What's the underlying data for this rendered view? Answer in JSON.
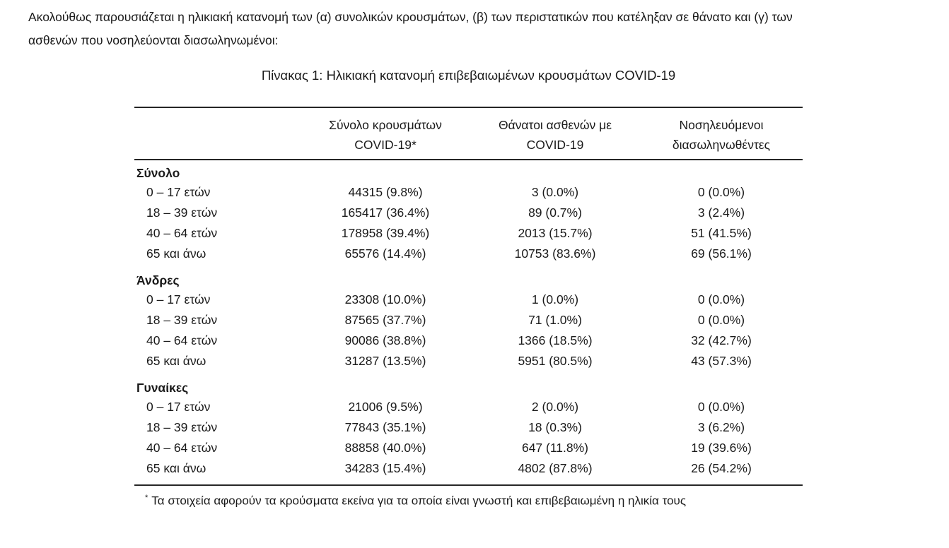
{
  "page": {
    "intro_line1": "Ακολούθως παρουσιάζεται η ηλικιακή κατανομή των (α) συνολικών κρουσμάτων, (β) των περιστατικών που κατέληξαν σε θάνατο και (γ) των",
    "intro_line2": "ασθενών που νοσηλεύονται διασωληνωμένοι:"
  },
  "table": {
    "title": "Πίνακας 1: Ηλικιακή κατανομή επιβεβαιωμένων κρουσμάτων COVID-19",
    "headers": [
      {
        "line1": "Σύνολο κρουσμάτων",
        "line2": "COVID-19*"
      },
      {
        "line1": "Θάνατοι ασθενών με",
        "line2": "COVID-19"
      },
      {
        "line1": "Νοσηλευόμενοι",
        "line2": "διασωληνωθέντες"
      }
    ],
    "sections": [
      {
        "label": "Σύνολο",
        "rows": [
          {
            "label": "0 – 17 ετών",
            "cells": [
              "44315 (9.8%)",
              "3 (0.0%)",
              "0 (0.0%)"
            ]
          },
          {
            "label": "18 – 39 ετών",
            "cells": [
              "165417 (36.4%)",
              "89 (0.7%)",
              "3 (2.4%)"
            ]
          },
          {
            "label": "40 – 64 ετών",
            "cells": [
              "178958 (39.4%)",
              "2013 (15.7%)",
              "51 (41.5%)"
            ]
          },
          {
            "label": "65 και άνω",
            "cells": [
              "65576 (14.4%)",
              "10753 (83.6%)",
              "69 (56.1%)"
            ]
          }
        ]
      },
      {
        "label": "Άνδρες",
        "rows": [
          {
            "label": "0 – 17 ετών",
            "cells": [
              "23308 (10.0%)",
              "1 (0.0%)",
              "0 (0.0%)"
            ]
          },
          {
            "label": "18 – 39 ετών",
            "cells": [
              "87565 (37.7%)",
              "71 (1.0%)",
              "0 (0.0%)"
            ]
          },
          {
            "label": "40 – 64 ετών",
            "cells": [
              "90086 (38.8%)",
              "1366 (18.5%)",
              "32 (42.7%)"
            ]
          },
          {
            "label": "65 και άνω",
            "cells": [
              "31287 (13.5%)",
              "5951 (80.5%)",
              "43 (57.3%)"
            ]
          }
        ]
      },
      {
        "label": "Γυναίκες",
        "rows": [
          {
            "label": "0 – 17 ετών",
            "cells": [
              "21006 (9.5%)",
              "2 (0.0%)",
              "0 (0.0%)"
            ]
          },
          {
            "label": "18 – 39 ετών",
            "cells": [
              "77843 (35.1%)",
              "18 (0.3%)",
              "3 (6.2%)"
            ]
          },
          {
            "label": "40 – 64 ετών",
            "cells": [
              "88858 (40.0%)",
              "647 (11.8%)",
              "19 (39.6%)"
            ]
          },
          {
            "label": "65 και άνω",
            "cells": [
              "34283 (15.4%)",
              "4802 (87.8%)",
              "26 (54.2%)"
            ]
          }
        ]
      }
    ],
    "footnote_marker": "*",
    "footnote_text": "Τα στοιχεία αφορούν τα κρούσματα εκείνα για τα οποία είναι γνωστή και επιβεβαιωμένη η ηλικία τους"
  },
  "colors": {
    "text": "#1a1a1a",
    "rule": "#262626",
    "background": "#ffffff"
  }
}
